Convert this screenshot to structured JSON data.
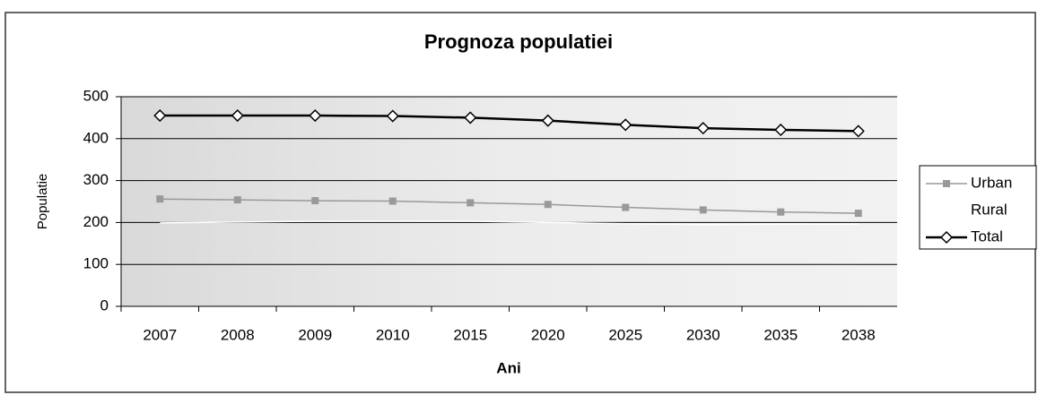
{
  "chart_data": {
    "type": "line",
    "title": "Prognoza populatiei",
    "x_label": "Ani",
    "y_label": "Populatie",
    "categories": [
      "2007",
      "2008",
      "2009",
      "2010",
      "2015",
      "2020",
      "2025",
      "2030",
      "2035",
      "2038"
    ],
    "series": [
      {
        "name": "Urban",
        "color": "#999999",
        "marker": "square",
        "values": [
          256,
          254,
          252,
          251,
          247,
          243,
          236,
          230,
          225,
          222
        ]
      },
      {
        "name": "Rural",
        "color": "#ffffff",
        "marker": "none",
        "values": [
          199,
          201,
          203,
          203,
          203,
          200,
          197,
          195,
          196,
          196
        ]
      },
      {
        "name": "Total",
        "color": "#000000",
        "marker": "diamond",
        "values": [
          455,
          455,
          455,
          454,
          450,
          443,
          433,
          425,
          421,
          418
        ]
      }
    ],
    "ylim": [
      0,
      500
    ],
    "yticks": [
      0,
      100,
      200,
      300,
      400,
      500
    ],
    "grid": true,
    "legend": "right"
  }
}
